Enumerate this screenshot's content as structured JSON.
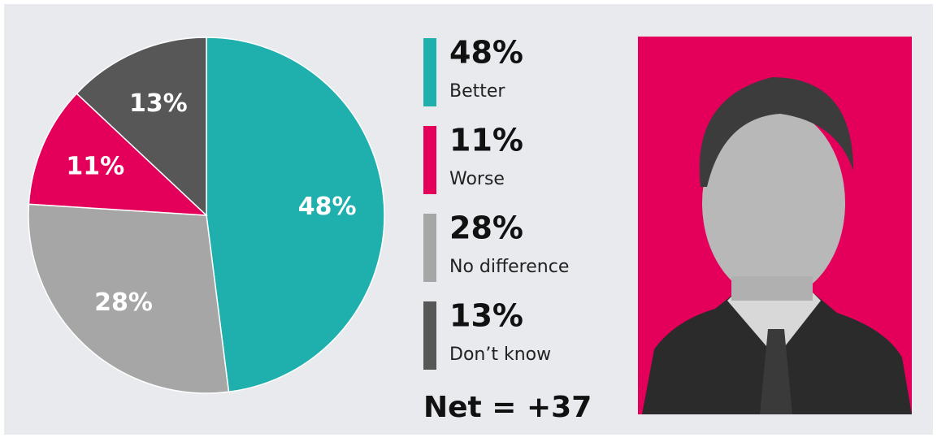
{
  "chart_data": {
    "type": "pie",
    "categories": [
      "Better",
      "Worse",
      "No difference",
      "Don’t know"
    ],
    "values": [
      48,
      11,
      28,
      13
    ],
    "value_labels": [
      "48%",
      "11%",
      "28%",
      "13%"
    ],
    "colors": [
      "#1fb0ae",
      "#e4005a",
      "#a6a6a6",
      "#575757"
    ],
    "annotation": "Net = +37"
  }
}
